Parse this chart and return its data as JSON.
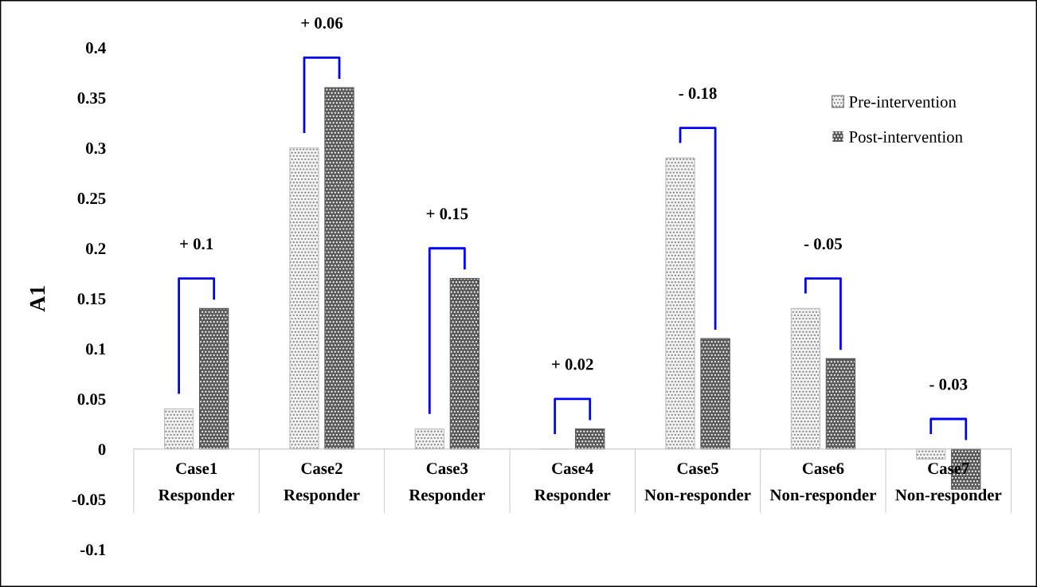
{
  "chart_data": {
    "type": "bar",
    "categories": [
      "Case1\nResponder",
      "Case2\nResponder",
      "Case3\nResponder",
      "Case4\nResponder",
      "Case5\nNon-responder",
      "Case6\nNon-responder",
      "Case7\nNon-responder"
    ],
    "series": [
      {
        "name": "Pre-intervention",
        "color": "#f2f2f2",
        "values": [
          0.04,
          0.3,
          0.02,
          0,
          0.29,
          0.14,
          -0.01
        ]
      },
      {
        "name": "Post-intervention",
        "color": "#595959",
        "values": [
          0.14,
          0.36,
          0.17,
          0.02,
          0.11,
          0.09,
          -0.04
        ]
      }
    ],
    "ylabel": "A1",
    "ylim": [
      -0.1,
      0.4
    ],
    "yticks": [
      -0.1,
      -0.05,
      0,
      0.05,
      0.1,
      0.15,
      0.2,
      0.25,
      0.3,
      0.35,
      0.4
    ],
    "annotations": [
      "+ 0.1",
      "+ 0.06",
      "+ 0.15",
      "+ 0.02",
      "- 0.18",
      "- 0.05",
      "- 0.03"
    ],
    "grid": false,
    "legend": "top right"
  }
}
